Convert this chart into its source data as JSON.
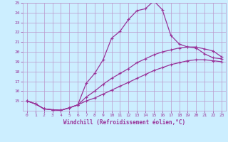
{
  "xlabel": "Windchill (Refroidissement éolien,°C)",
  "bg_color": "#cceeff",
  "grid_color": "#bb99cc",
  "line_color": "#993399",
  "xlim": [
    -0.5,
    23.5
  ],
  "ylim": [
    14,
    25
  ],
  "xticks": [
    0,
    1,
    2,
    3,
    4,
    5,
    6,
    7,
    8,
    9,
    10,
    11,
    12,
    13,
    14,
    15,
    16,
    17,
    18,
    19,
    20,
    21,
    22,
    23
  ],
  "yticks": [
    15,
    16,
    17,
    18,
    19,
    20,
    21,
    22,
    23,
    24,
    25
  ],
  "line1_x": [
    0,
    1,
    2,
    3,
    4,
    5,
    6,
    7,
    8,
    9,
    10,
    11,
    12,
    13,
    14,
    15,
    16,
    17,
    18,
    19,
    20,
    21,
    22,
    23
  ],
  "line1_y": [
    15.0,
    14.7,
    14.2,
    14.1,
    14.05,
    14.3,
    14.6,
    16.8,
    17.8,
    19.2,
    21.4,
    22.1,
    23.3,
    24.2,
    24.4,
    25.2,
    24.3,
    21.7,
    20.8,
    20.5,
    20.4,
    19.8,
    19.4,
    19.3
  ],
  "line2_x": [
    0,
    1,
    2,
    3,
    4,
    5,
    6,
    7,
    8,
    9,
    10,
    11,
    12,
    13,
    14,
    15,
    16,
    17,
    18,
    19,
    20,
    21,
    22,
    23
  ],
  "line2_y": [
    15.0,
    14.7,
    14.2,
    14.1,
    14.05,
    14.3,
    14.6,
    15.4,
    16.0,
    16.7,
    17.3,
    17.8,
    18.3,
    18.9,
    19.3,
    19.7,
    20.0,
    20.2,
    20.4,
    20.5,
    20.5,
    20.3,
    20.1,
    19.5
  ],
  "line3_x": [
    0,
    1,
    2,
    3,
    4,
    5,
    6,
    7,
    8,
    9,
    10,
    11,
    12,
    13,
    14,
    15,
    16,
    17,
    18,
    19,
    20,
    21,
    22,
    23
  ],
  "line3_y": [
    15.0,
    14.7,
    14.2,
    14.1,
    14.05,
    14.3,
    14.6,
    15.0,
    15.3,
    15.7,
    16.1,
    16.5,
    16.9,
    17.3,
    17.7,
    18.1,
    18.4,
    18.7,
    18.9,
    19.1,
    19.2,
    19.2,
    19.1,
    19.0
  ]
}
